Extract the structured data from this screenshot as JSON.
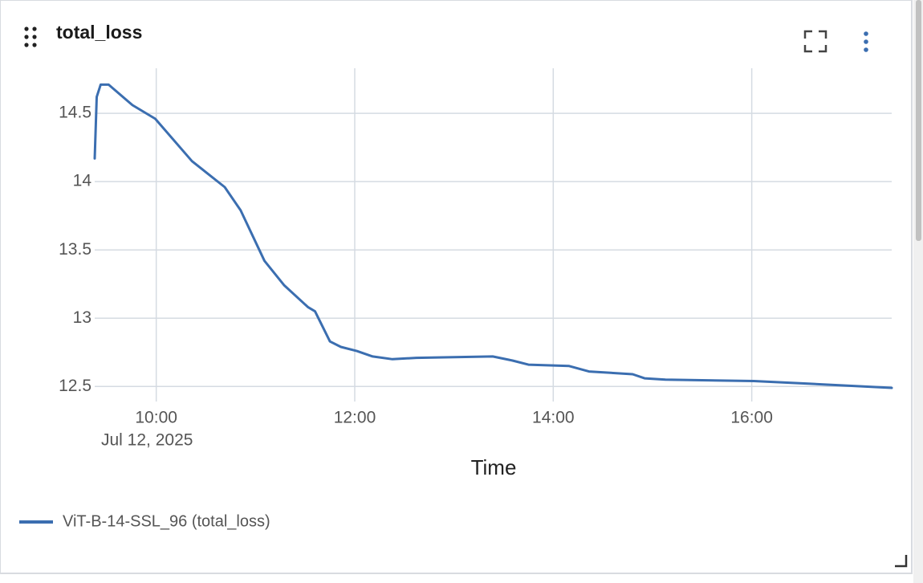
{
  "chart_data": {
    "type": "line",
    "title": "total_loss",
    "x_label": "Time",
    "x_date_label": "Jul 12, 2025",
    "x": [
      9.38,
      9.4,
      9.44,
      9.52,
      9.76,
      9.99,
      10.36,
      10.69,
      10.85,
      11.09,
      11.29,
      11.53,
      11.6,
      11.75,
      11.86,
      12.02,
      12.18,
      12.38,
      12.62,
      13.39,
      13.59,
      13.75,
      14.16,
      14.36,
      14.8,
      14.92,
      15.13,
      16.02,
      16.59,
      17.41
    ],
    "series": [
      {
        "name": "ViT-B-14-SSL_96 (total_loss)",
        "color": "#3b6eb0",
        "values": [
          14.17,
          14.62,
          14.71,
          14.71,
          14.56,
          14.46,
          14.15,
          13.96,
          13.79,
          13.42,
          13.24,
          13.08,
          13.05,
          12.83,
          12.79,
          12.76,
          12.72,
          12.7,
          12.71,
          12.72,
          12.69,
          12.66,
          12.65,
          12.61,
          12.59,
          12.56,
          12.55,
          12.54,
          12.52,
          12.49
        ]
      }
    ],
    "xlim": [
      9.38,
      17.41
    ],
    "xticks": [
      {
        "value": 10,
        "label": "10:00"
      },
      {
        "value": 12,
        "label": "12:00"
      },
      {
        "value": 14,
        "label": "14:00"
      },
      {
        "value": 16,
        "label": "16:00"
      }
    ],
    "ylim": [
      12.39,
      14.83
    ],
    "yticks": [
      12.5,
      13,
      13.5,
      14,
      14.5
    ],
    "grid": true
  }
}
